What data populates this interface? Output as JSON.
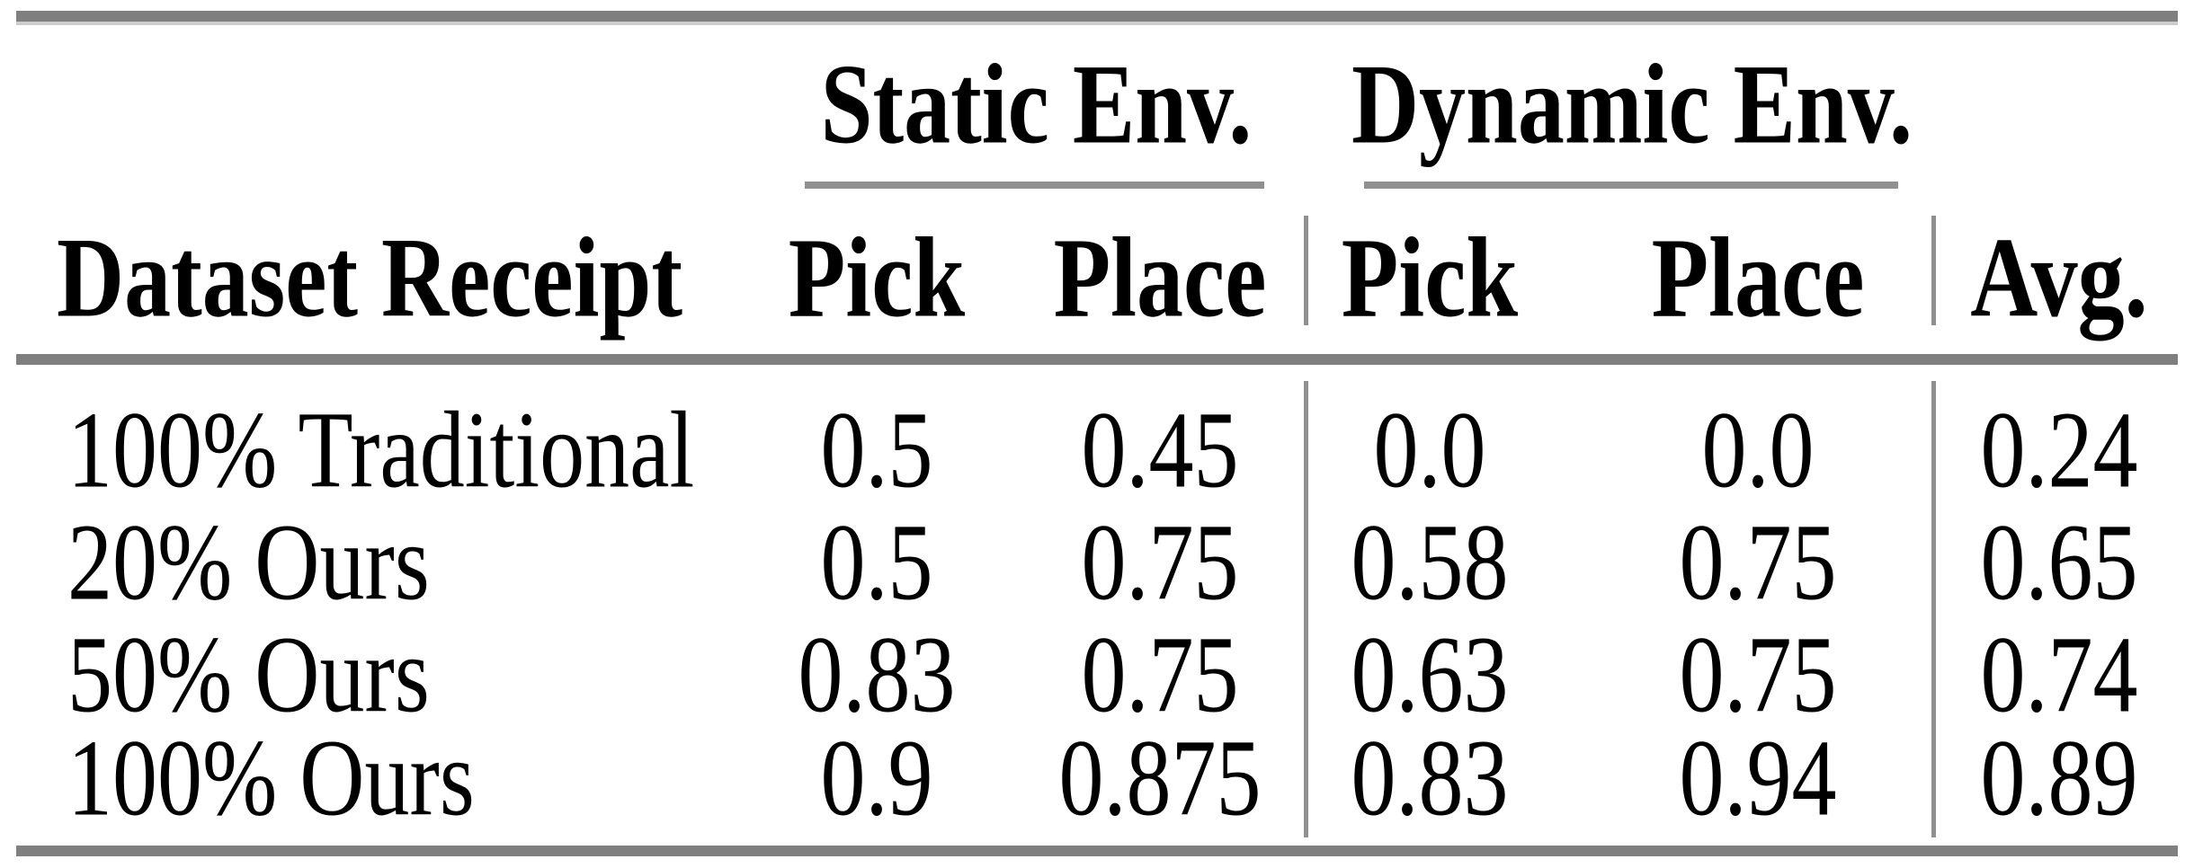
{
  "table": {
    "col_groups": [
      {
        "label": "Static Env."
      },
      {
        "label": "Dynamic Env."
      }
    ],
    "headers": {
      "dataset": "Dataset Receipt",
      "static_pick": "Pick",
      "static_place": "Place",
      "dynamic_pick": "Pick",
      "dynamic_place": "Place",
      "avg": "Avg."
    },
    "rows": [
      {
        "label": "100% Traditional",
        "static_pick": "0.5",
        "static_place": "0.45",
        "dynamic_pick": "0.0",
        "dynamic_place": "0.0",
        "avg": "0.24"
      },
      {
        "label": "20% Ours",
        "static_pick": "0.5",
        "static_place": "0.75",
        "dynamic_pick": "0.58",
        "dynamic_place": "0.75",
        "avg": "0.65"
      },
      {
        "label": "50% Ours",
        "static_pick": "0.83",
        "static_place": "0.75",
        "dynamic_pick": "0.63",
        "dynamic_place": "0.75",
        "avg": "0.74"
      },
      {
        "label": "100% Ours",
        "static_pick": "0.9",
        "static_place": "0.875",
        "dynamic_pick": "0.83",
        "dynamic_place": "0.94",
        "avg": "0.89"
      }
    ],
    "colors": {
      "rule_thick": "#7f7f7f",
      "rule_thin": "#909090",
      "text": "#000000",
      "background": "#ffffff"
    }
  },
  "chart_data": {
    "type": "table",
    "title": "",
    "column_groups": [
      "Static Env.",
      "Dynamic Env."
    ],
    "columns": [
      "Dataset Receipt",
      "Static Pick",
      "Static Place",
      "Dynamic Pick",
      "Dynamic Place",
      "Avg."
    ],
    "rows": [
      [
        "100% Traditional",
        0.5,
        0.45,
        0.0,
        0.0,
        0.24
      ],
      [
        "20% Ours",
        0.5,
        0.75,
        0.58,
        0.75,
        0.65
      ],
      [
        "50% Ours",
        0.83,
        0.75,
        0.63,
        0.75,
        0.74
      ],
      [
        "100% Ours",
        0.9,
        0.875,
        0.83,
        0.94,
        0.89
      ]
    ]
  }
}
